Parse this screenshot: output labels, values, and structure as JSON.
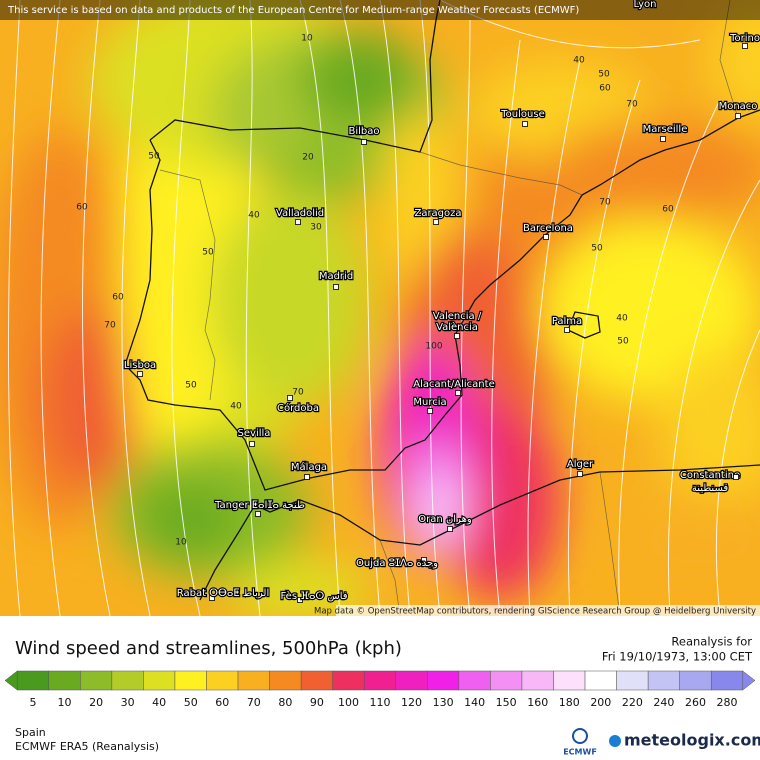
{
  "notice": "This service is based on data and products of the European Centre for Medium-range Weather Forecasts (ECMWF)",
  "cities": [
    "Lyon",
    "Torino",
    "Bilbao",
    "Toulouse",
    "Monaco",
    "Marseille",
    "Valladolid",
    "Zaragoza",
    "Barcelona",
    "Madrid",
    "Valencia /",
    "València",
    "Palma",
    "Lisboa",
    "Alacant/Alicante",
    "Murcia",
    "Córdoba",
    "Sevilla",
    "Málaga",
    "Alger",
    "Constantine",
    "قسنطينة",
    "Tanger ⵟⴰⵏⵊⴰ طنجة",
    "Oran وهران",
    "Oujda ⵓⵊⴷⴰ وجدة",
    "Rabat ⵔⴱⴰⵟ الرباط",
    "Fès ⴼⴰⵙ فاس"
  ],
  "contour_labels": [
    10,
    40,
    50,
    60,
    70,
    50,
    20,
    60,
    40,
    30,
    50,
    60,
    70,
    70,
    60,
    50,
    40,
    50,
    100,
    50,
    40,
    70,
    10
  ],
  "attribution": "Map data © OpenStreetMap contributors, rendering GIScience Research Group @ Heidelberg University",
  "title": "Wind speed and streamlines, 500hPa (kph)",
  "reanalysis": "Reanalysis for",
  "date": "Fri 19/10/1973, 13:00 CET",
  "colorbar": {
    "ticks": [
      5,
      10,
      20,
      30,
      40,
      50,
      60,
      70,
      80,
      90,
      100,
      110,
      120,
      130,
      140,
      150,
      160,
      180,
      200,
      220,
      240,
      260,
      280
    ],
    "colors": [
      "#4a9a20",
      "#6aaa20",
      "#8cbc28",
      "#b4cc28",
      "#dce020",
      "#fff020",
      "#fcd020",
      "#f8b020",
      "#f48a20",
      "#f06030",
      "#ee3060",
      "#f02090",
      "#f020c0",
      "#f020e8",
      "#f060f0",
      "#f490f4",
      "#f8b8f8",
      "#fce0fc",
      "#ffffff",
      "#e0e0f8",
      "#c4c4f4",
      "#a8a8f0",
      "#8888ec"
    ]
  },
  "region": "Spain",
  "model": "ECMWF ERA5 (Reanalysis)",
  "ecmwf_logo": "ECMWF",
  "brand": "meteologix.com"
}
